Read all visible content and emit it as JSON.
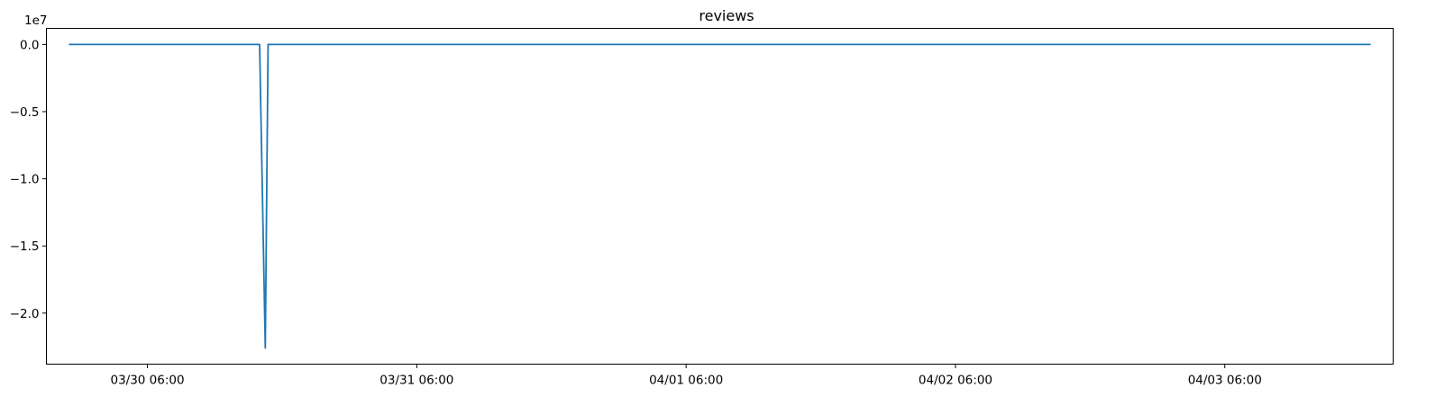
{
  "chart_data": {
    "type": "line",
    "title": "reviews",
    "xlabel": "",
    "ylabel": "",
    "y_offset_label": "1e7",
    "y_scale_factor": 10000000,
    "xlim": [
      "2026-03-29 21:00",
      "2026-04-03 21:00"
    ],
    "ylim": [
      -23800000,
      1200000
    ],
    "x_ticks": [
      {
        "value": "2026-03-30 06:00",
        "label": "03/30 06:00"
      },
      {
        "value": "2026-03-31 06:00",
        "label": "03/31 06:00"
      },
      {
        "value": "2026-04-01 06:00",
        "label": "04/01 06:00"
      },
      {
        "value": "2026-04-02 06:00",
        "label": "04/02 06:00"
      },
      {
        "value": "2026-04-03 06:00",
        "label": "04/03 06:00"
      }
    ],
    "y_ticks": [
      {
        "value": 0,
        "label": "0.0"
      },
      {
        "value": -5000000,
        "label": "−0.5"
      },
      {
        "value": -10000000,
        "label": "−1.0"
      },
      {
        "value": -15000000,
        "label": "−1.5"
      },
      {
        "value": -20000000,
        "label": "−2.0"
      }
    ],
    "grid": false,
    "legend": "none",
    "series": [
      {
        "color": "#1f77b4",
        "x": [
          "2026-03-29 23:00",
          "2026-03-30 16:00",
          "2026-03-30 16:30",
          "2026-03-30 16:45",
          "2026-04-03 19:00"
        ],
        "y": [
          0,
          0,
          -22600000,
          0,
          0
        ]
      }
    ]
  }
}
